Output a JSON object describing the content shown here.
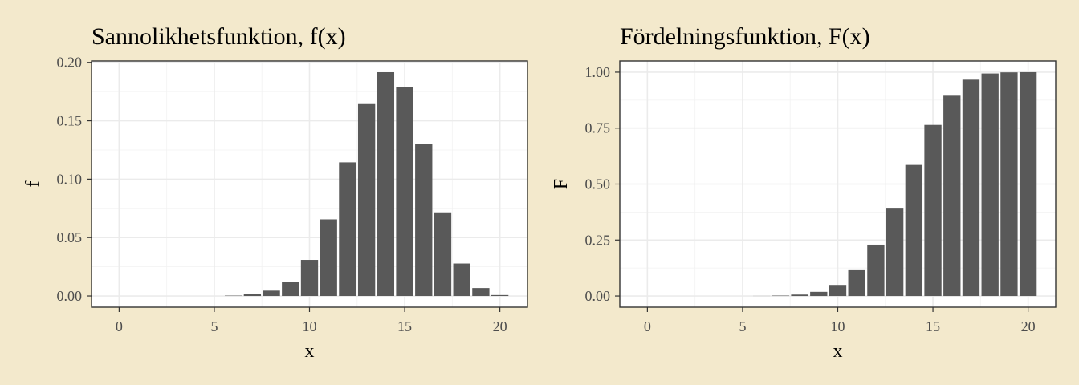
{
  "chart_data": [
    {
      "type": "bar",
      "title": "Sannolikhetsfunktion, f(x)",
      "xlabel": "x",
      "ylabel": "f",
      "x": [
        0,
        1,
        2,
        3,
        4,
        5,
        6,
        7,
        8,
        9,
        10,
        11,
        12,
        13,
        14,
        15,
        16,
        17,
        18,
        19,
        20
      ],
      "values": [
        0,
        0,
        0,
        0,
        0,
        0,
        0.0003,
        0.0014,
        0.0046,
        0.0123,
        0.0309,
        0.0656,
        0.1144,
        0.1643,
        0.1916,
        0.1789,
        0.1304,
        0.0716,
        0.0278,
        0.0068,
        0.0008
      ],
      "xlim": [
        -1.45,
        21.45
      ],
      "ylim": [
        -0.0096,
        0.2012
      ],
      "xticks": [
        0,
        5,
        10,
        15,
        20
      ],
      "xtick_labels": [
        "0",
        "5",
        "10",
        "15",
        "20"
      ],
      "yticks": [
        0,
        0.05,
        0.1,
        0.15,
        0.2
      ],
      "ytick_labels": [
        "0.00",
        "0.05",
        "0.10",
        "0.15",
        "0.20"
      ],
      "grid": true,
      "bar_color": "#595959"
    },
    {
      "type": "bar",
      "title": "Fördelningsfunktion, F(x)",
      "xlabel": "x",
      "ylabel": "F",
      "x": [
        0,
        1,
        2,
        3,
        4,
        5,
        6,
        7,
        8,
        9,
        10,
        11,
        12,
        13,
        14,
        15,
        16,
        17,
        18,
        19,
        20
      ],
      "values": [
        0,
        0,
        0,
        0,
        0,
        0,
        0.0004,
        0.0018,
        0.0064,
        0.0187,
        0.0496,
        0.1152,
        0.2296,
        0.3939,
        0.5855,
        0.7644,
        0.8948,
        0.9664,
        0.9942,
        0.9992,
        1.0
      ],
      "xlim": [
        -1.45,
        21.45
      ],
      "ylim": [
        -0.05,
        1.05
      ],
      "xticks": [
        0,
        5,
        10,
        15,
        20
      ],
      "xtick_labels": [
        "0",
        "5",
        "10",
        "15",
        "20"
      ],
      "yticks": [
        0,
        0.25,
        0.5,
        0.75,
        1
      ],
      "ytick_labels": [
        "0.00",
        "0.25",
        "0.50",
        "0.75",
        "1.00"
      ],
      "grid": true,
      "bar_color": "#595959"
    }
  ]
}
